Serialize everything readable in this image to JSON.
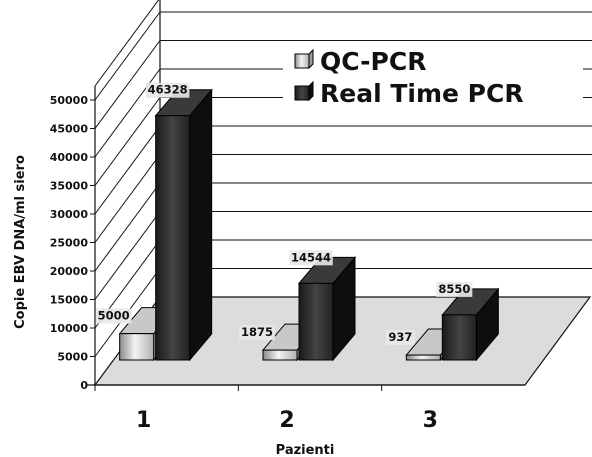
{
  "chart_data": {
    "type": "bar",
    "view": "3d",
    "categories": [
      "1",
      "2",
      "3"
    ],
    "series": [
      {
        "name": "QC-PCR",
        "values": [
          5000,
          1875,
          937
        ],
        "data_labels": [
          "5000",
          "1875",
          "937"
        ]
      },
      {
        "name": "Real Time PCR",
        "values": [
          46328,
          14544,
          8550
        ],
        "data_labels": [
          "46328",
          "14544",
          "8550"
        ]
      }
    ],
    "ylabel": "Copie EBV DNA/ml siero",
    "xlabel": "Pazienti",
    "ylim": [
      0,
      50000
    ],
    "yticks": [
      0,
      5000,
      10000,
      15000,
      20000,
      25000,
      30000,
      35000,
      40000,
      45000,
      50000
    ],
    "grid": true,
    "legend": "top-right",
    "colors": {
      "QC-PCR": "#e6e6e6",
      "Real Time PCR": "#262626",
      "floor": "#dcdcdc"
    }
  }
}
